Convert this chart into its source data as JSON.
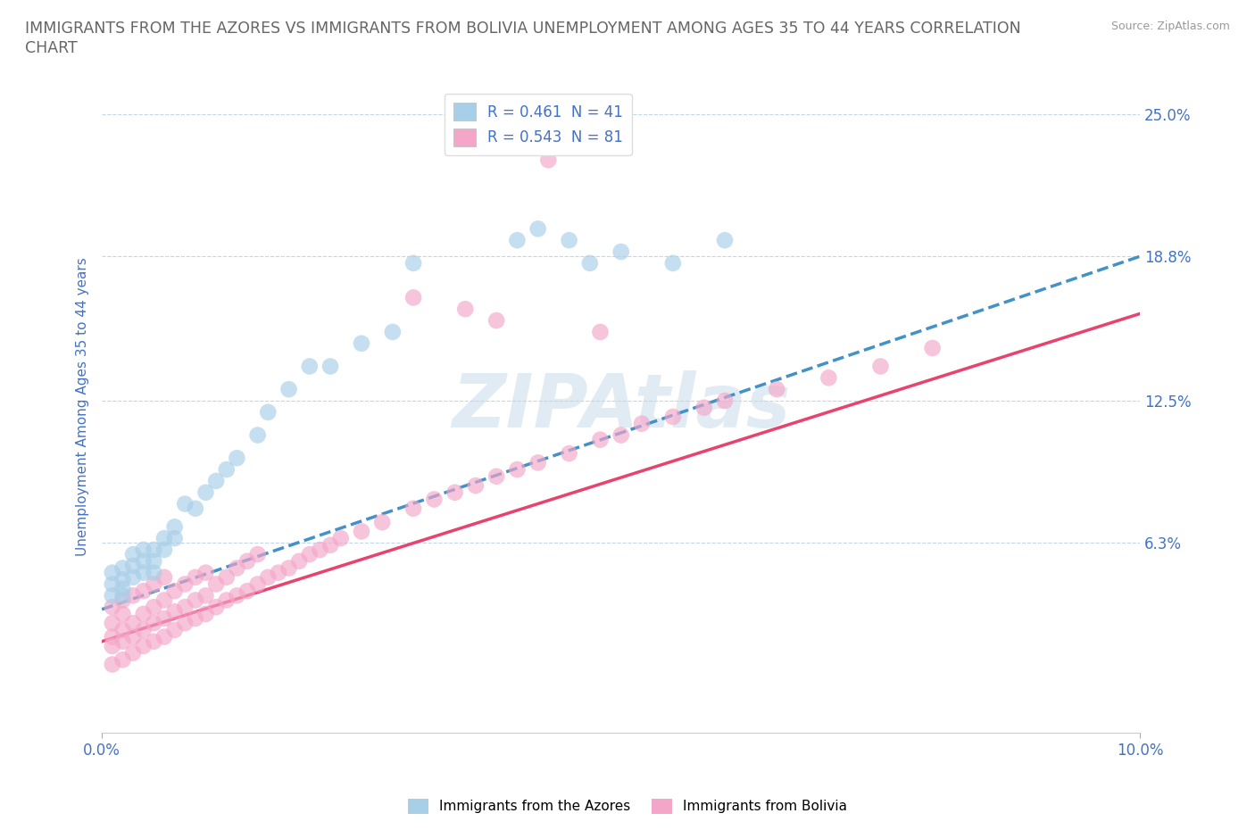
{
  "title_line1": "IMMIGRANTS FROM THE AZORES VS IMMIGRANTS FROM BOLIVIA UNEMPLOYMENT AMONG AGES 35 TO 44 YEARS CORRELATION",
  "title_line2": "CHART",
  "source_text": "Source: ZipAtlas.com",
  "ylabel": "Unemployment Among Ages 35 to 44 years",
  "xlim": [
    0.0,
    0.1
  ],
  "ylim": [
    -0.02,
    0.265
  ],
  "xtick_vals": [
    0.0,
    0.1
  ],
  "xtick_labels": [
    "0.0%",
    "10.0%"
  ],
  "ytick_vals": [
    0.063,
    0.125,
    0.188,
    0.25
  ],
  "ytick_labels": [
    "6.3%",
    "12.5%",
    "18.8%",
    "25.0%"
  ],
  "grid_ytick_vals": [
    0.063,
    0.125,
    0.188,
    0.25
  ],
  "azores_color": "#a8cfe8",
  "bolivia_color": "#f4a6c8",
  "azores_line_color": "#4292c6",
  "bolivia_line_color": "#e8436e",
  "R_azores": 0.461,
  "N_azores": 41,
  "R_bolivia": 0.543,
  "N_bolivia": 81,
  "watermark": "ZIPAtlas",
  "watermark_color": "#c5d8e8",
  "grid_color": "#c5d5e8",
  "title_color": "#666666",
  "axis_label_color": "#4472c4",
  "tick_color": "#4472c4",
  "legend_text_color": "#4472c4",
  "azores_x": [
    0.001,
    0.001,
    0.001,
    0.002,
    0.002,
    0.002,
    0.002,
    0.003,
    0.003,
    0.003,
    0.004,
    0.004,
    0.004,
    0.005,
    0.005,
    0.005,
    0.006,
    0.006,
    0.007,
    0.007,
    0.008,
    0.009,
    0.01,
    0.011,
    0.012,
    0.013,
    0.015,
    0.016,
    0.018,
    0.02,
    0.022,
    0.025,
    0.028,
    0.03,
    0.04,
    0.042,
    0.045,
    0.047,
    0.05,
    0.055,
    0.06
  ],
  "azores_y": [
    0.04,
    0.045,
    0.05,
    0.04,
    0.043,
    0.047,
    0.052,
    0.048,
    0.053,
    0.058,
    0.05,
    0.055,
    0.06,
    0.05,
    0.055,
    0.06,
    0.06,
    0.065,
    0.065,
    0.07,
    0.08,
    0.078,
    0.085,
    0.09,
    0.095,
    0.1,
    0.11,
    0.12,
    0.13,
    0.14,
    0.14,
    0.15,
    0.155,
    0.185,
    0.195,
    0.2,
    0.195,
    0.185,
    0.19,
    0.185,
    0.195
  ],
  "bolivia_x": [
    0.001,
    0.001,
    0.001,
    0.001,
    0.001,
    0.002,
    0.002,
    0.002,
    0.002,
    0.002,
    0.003,
    0.003,
    0.003,
    0.003,
    0.004,
    0.004,
    0.004,
    0.004,
    0.005,
    0.005,
    0.005,
    0.005,
    0.006,
    0.006,
    0.006,
    0.006,
    0.007,
    0.007,
    0.007,
    0.008,
    0.008,
    0.008,
    0.009,
    0.009,
    0.009,
    0.01,
    0.01,
    0.01,
    0.011,
    0.011,
    0.012,
    0.012,
    0.013,
    0.013,
    0.014,
    0.014,
    0.015,
    0.015,
    0.016,
    0.017,
    0.018,
    0.019,
    0.02,
    0.021,
    0.022,
    0.023,
    0.025,
    0.027,
    0.03,
    0.032,
    0.034,
    0.036,
    0.038,
    0.04,
    0.042,
    0.045,
    0.048,
    0.05,
    0.052,
    0.055,
    0.058,
    0.06,
    0.065,
    0.07,
    0.075,
    0.08,
    0.048,
    0.038,
    0.035,
    0.03,
    0.043
  ],
  "bolivia_y": [
    0.01,
    0.018,
    0.022,
    0.028,
    0.035,
    0.012,
    0.02,
    0.025,
    0.032,
    0.038,
    0.015,
    0.022,
    0.028,
    0.04,
    0.018,
    0.025,
    0.032,
    0.042,
    0.02,
    0.028,
    0.035,
    0.045,
    0.022,
    0.03,
    0.038,
    0.048,
    0.025,
    0.033,
    0.042,
    0.028,
    0.035,
    0.045,
    0.03,
    0.038,
    0.048,
    0.032,
    0.04,
    0.05,
    0.035,
    0.045,
    0.038,
    0.048,
    0.04,
    0.052,
    0.042,
    0.055,
    0.045,
    0.058,
    0.048,
    0.05,
    0.052,
    0.055,
    0.058,
    0.06,
    0.062,
    0.065,
    0.068,
    0.072,
    0.078,
    0.082,
    0.085,
    0.088,
    0.092,
    0.095,
    0.098,
    0.102,
    0.108,
    0.11,
    0.115,
    0.118,
    0.122,
    0.125,
    0.13,
    0.135,
    0.14,
    0.148,
    0.155,
    0.16,
    0.165,
    0.17,
    0.23
  ],
  "line_azores_x0": 0.0,
  "line_azores_y0": 0.034,
  "line_azores_x1": 0.1,
  "line_azores_y1": 0.188,
  "line_bolivia_x0": 0.0,
  "line_bolivia_y0": 0.02,
  "line_bolivia_x1": 0.1,
  "line_bolivia_y1": 0.163
}
